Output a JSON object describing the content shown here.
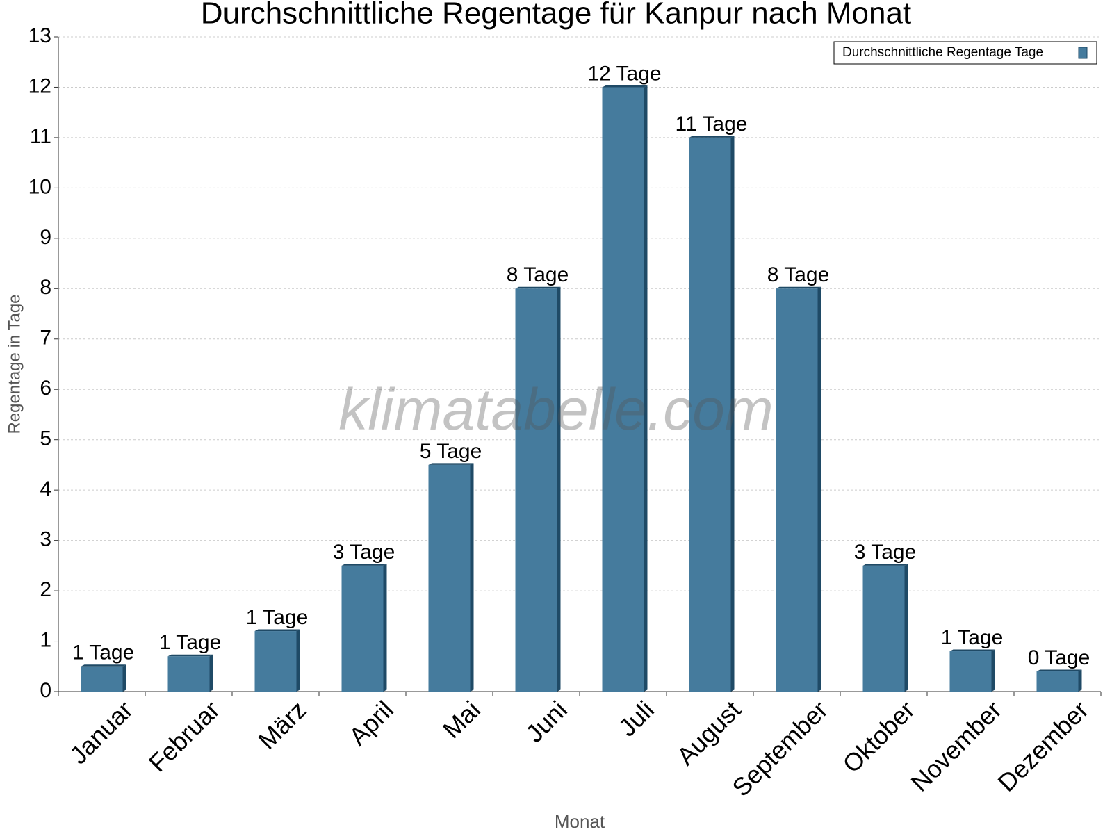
{
  "chart_data": {
    "type": "bar",
    "title": "Durchschnittliche Regentage für Kanpur nach Monat",
    "x_label": "Monat",
    "y_label": "Regentage in Tage",
    "watermark": "klimatabelle.com",
    "categories": [
      "Januar",
      "Februar",
      "März",
      "April",
      "Mai",
      "Juni",
      "Juli",
      "August",
      "September",
      "Oktober",
      "November",
      "Dezember"
    ],
    "series": [
      {
        "name": "Durchschnittliche Regentage Tage",
        "color": "#457b9d",
        "values": [
          0.5,
          0.7,
          1.2,
          2.5,
          4.5,
          8,
          12,
          11,
          8,
          2.5,
          0.8,
          0.4
        ],
        "value_labels": [
          "1 Tage",
          "1 Tage",
          "1 Tage",
          "3 Tage",
          "5 Tage",
          "8 Tage",
          "12 Tage",
          "11 Tage",
          "8 Tage",
          "3 Tage",
          "1 Tage",
          "0 Tage"
        ]
      }
    ],
    "ylim": [
      0,
      13
    ],
    "yticks": [
      0,
      1,
      2,
      3,
      4,
      5,
      6,
      7,
      8,
      9,
      10,
      11,
      12,
      13
    ],
    "grid": true,
    "legend": "top-right"
  }
}
